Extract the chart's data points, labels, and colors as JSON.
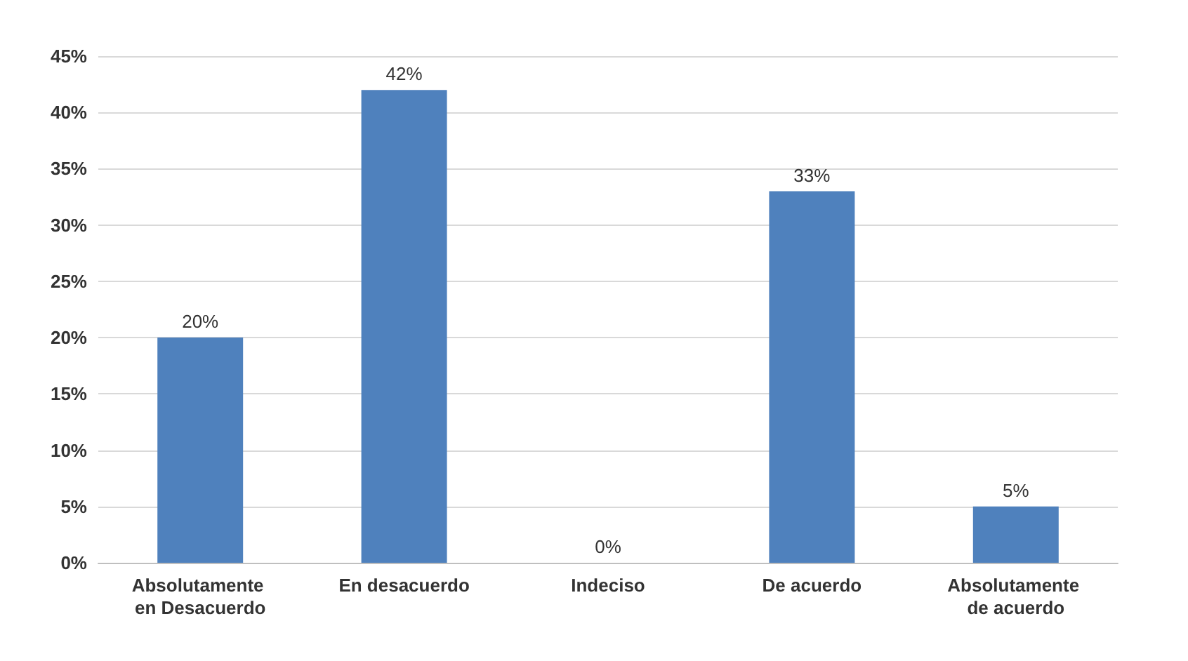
{
  "chart_data": {
    "type": "bar",
    "categories": [
      "Absolutamente en Desacuerdo",
      "En desacuerdo",
      "Indeciso",
      "De acuerdo",
      "Absolutamente de acuerdo"
    ],
    "values": [
      20,
      42,
      0,
      33,
      5
    ],
    "value_labels": [
      "20%",
      "42%",
      "0%",
      "33%",
      "5%"
    ],
    "color": "#4f81bd",
    "ylim": [
      0,
      45
    ],
    "yticks": [
      {
        "value": 0,
        "label": "0%"
      },
      {
        "value": 5,
        "label": "5%"
      },
      {
        "value": 10,
        "label": "10%"
      },
      {
        "value": 15,
        "label": "15%"
      },
      {
        "value": 20,
        "label": "20%"
      },
      {
        "value": 25,
        "label": "25%"
      },
      {
        "value": 30,
        "label": "30%"
      },
      {
        "value": 35,
        "label": "35%"
      },
      {
        "value": 40,
        "label": "40%"
      },
      {
        "value": 45,
        "label": "45%"
      }
    ],
    "grid": "y"
  }
}
